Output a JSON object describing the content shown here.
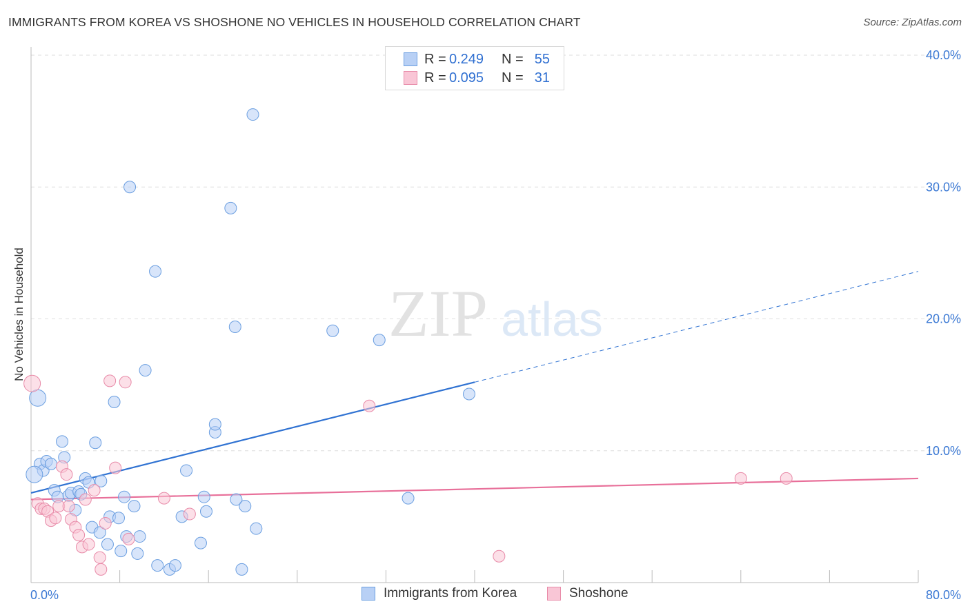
{
  "header": {
    "title": "IMMIGRANTS FROM KOREA VS SHOSHONE NO VEHICLES IN HOUSEHOLD CORRELATION CHART",
    "source": "Source: ZipAtlas.com"
  },
  "legend_top": {
    "rows": [
      {
        "r_label": "R =",
        "r_value": "0.249",
        "n_label": "N =",
        "n_value": "55",
        "fill": "#b8d0f5",
        "stroke": "#6a9ee0"
      },
      {
        "r_label": "R =",
        "r_value": "0.095",
        "n_label": "N =",
        "n_value": "31",
        "fill": "#f9c6d6",
        "stroke": "#e88aa8"
      }
    ]
  },
  "legend_bottom": {
    "items": [
      {
        "label": "Immigrants from Korea",
        "fill": "#b8d0f5",
        "stroke": "#6a9ee0"
      },
      {
        "label": "Shoshone",
        "fill": "#f9c6d6",
        "stroke": "#e88aa8"
      }
    ]
  },
  "watermark": {
    "zip": "ZIP",
    "atlas": "atlas"
  },
  "chart_data": {
    "type": "scatter",
    "title": "IMMIGRANTS FROM KOREA VS SHOSHONE NO VEHICLES IN HOUSEHOLD CORRELATION CHART",
    "ylabel": "No Vehicles in Household",
    "xlabel": "",
    "xlim": [
      0,
      80
    ],
    "ylim": [
      0,
      40
    ],
    "x_tick_labels": [
      "0.0%",
      "80.0%"
    ],
    "y_ticks": [
      10,
      20,
      30,
      40
    ],
    "y_tick_labels": [
      "10.0%",
      "20.0%",
      "30.0%",
      "40.0%"
    ],
    "grid": "horizontal dashed",
    "legend_placement": "top-center and bottom",
    "colors": {
      "korea": "#6a9ee0",
      "korea_line": "#2f72d2",
      "shoshone": "#e88aa8",
      "shoshone_line": "#e8709a",
      "tick_label": "#3a78d4"
    },
    "series": [
      {
        "name": "Immigrants from Korea",
        "R": 0.249,
        "N": 55,
        "trend": {
          "x0": 0,
          "y0": 6.8,
          "x1": 40,
          "y1": 15.2,
          "dash_to_x": 80,
          "dash_to_y": 23.6
        },
        "points": [
          [
            0.6,
            14.0
          ],
          [
            0.8,
            9.0
          ],
          [
            1.1,
            8.5
          ],
          [
            1.4,
            9.2
          ],
          [
            1.8,
            9.0
          ],
          [
            2.1,
            7.0
          ],
          [
            2.4,
            6.5
          ],
          [
            2.8,
            10.7
          ],
          [
            3.0,
            9.5
          ],
          [
            3.4,
            6.6
          ],
          [
            3.6,
            6.8
          ],
          [
            4.0,
            5.5
          ],
          [
            4.3,
            6.9
          ],
          [
            4.5,
            6.7
          ],
          [
            4.9,
            7.9
          ],
          [
            5.2,
            7.6
          ],
          [
            5.5,
            4.2
          ],
          [
            5.8,
            10.6
          ],
          [
            6.2,
            3.8
          ],
          [
            6.3,
            7.7
          ],
          [
            6.9,
            2.9
          ],
          [
            7.1,
            5.0
          ],
          [
            7.5,
            13.7
          ],
          [
            7.9,
            4.9
          ],
          [
            8.1,
            2.4
          ],
          [
            8.4,
            6.5
          ],
          [
            8.6,
            3.5
          ],
          [
            8.9,
            30.0
          ],
          [
            9.3,
            5.8
          ],
          [
            9.6,
            2.2
          ],
          [
            9.8,
            3.5
          ],
          [
            10.3,
            16.1
          ],
          [
            11.2,
            23.6
          ],
          [
            11.4,
            1.3
          ],
          [
            12.5,
            1.0
          ],
          [
            13.0,
            1.3
          ],
          [
            13.6,
            5.0
          ],
          [
            14.0,
            8.5
          ],
          [
            15.3,
            3.0
          ],
          [
            15.6,
            6.5
          ],
          [
            15.8,
            5.4
          ],
          [
            16.6,
            11.4
          ],
          [
            16.6,
            12.0
          ],
          [
            18.0,
            28.4
          ],
          [
            18.4,
            19.4
          ],
          [
            18.5,
            6.3
          ],
          [
            19.0,
            1.0
          ],
          [
            19.3,
            5.8
          ],
          [
            20.0,
            35.5
          ],
          [
            20.3,
            4.1
          ],
          [
            27.2,
            19.1
          ],
          [
            31.4,
            18.4
          ],
          [
            34.0,
            6.4
          ],
          [
            39.5,
            14.3
          ],
          [
            0.3,
            8.2
          ]
        ]
      },
      {
        "name": "Shoshone",
        "R": 0.095,
        "N": 31,
        "trend": {
          "x0": 0,
          "y0": 6.3,
          "x1": 80,
          "y1": 7.9
        },
        "points": [
          [
            0.1,
            15.1
          ],
          [
            0.6,
            6.0
          ],
          [
            0.9,
            5.6
          ],
          [
            1.2,
            5.6
          ],
          [
            1.5,
            5.4
          ],
          [
            1.8,
            4.7
          ],
          [
            2.2,
            4.9
          ],
          [
            2.5,
            5.8
          ],
          [
            2.8,
            8.8
          ],
          [
            3.2,
            8.2
          ],
          [
            3.4,
            5.8
          ],
          [
            3.6,
            4.8
          ],
          [
            4.0,
            4.2
          ],
          [
            4.3,
            3.6
          ],
          [
            4.6,
            2.7
          ],
          [
            4.9,
            6.3
          ],
          [
            5.2,
            2.9
          ],
          [
            5.7,
            7.0
          ],
          [
            6.2,
            1.9
          ],
          [
            6.3,
            1.0
          ],
          [
            6.7,
            4.5
          ],
          [
            7.1,
            15.3
          ],
          [
            7.6,
            8.7
          ],
          [
            8.5,
            15.2
          ],
          [
            8.8,
            3.3
          ],
          [
            12.0,
            6.4
          ],
          [
            14.3,
            5.2
          ],
          [
            30.5,
            13.4
          ],
          [
            42.2,
            2.0
          ],
          [
            64.0,
            7.9
          ],
          [
            68.1,
            7.9
          ]
        ]
      }
    ]
  }
}
